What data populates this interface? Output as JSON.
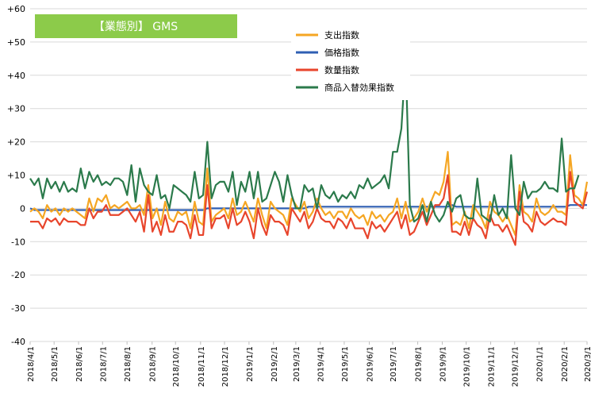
{
  "chart_data": {
    "type": "line",
    "title": "【業態別】 GMS",
    "title_bg": "#8CCB4A",
    "ylim": [
      -40,
      60
    ],
    "yticks": [
      60,
      50,
      40,
      30,
      20,
      10,
      0,
      -10,
      -20,
      -30,
      -40
    ],
    "ytick_labels": [
      "+60",
      "+50",
      "+40",
      "+30",
      "+20",
      "+10",
      "0",
      "-10",
      "-20",
      "-30",
      "-40"
    ],
    "x_start": "2018/4/1",
    "x_interval_weeks": 1,
    "xtick_labels": [
      "2018/4/1",
      "2018/5/1",
      "2018/6/1",
      "2018/7/1",
      "2018/8/1",
      "2018/9/1",
      "2018/10/1",
      "2018/11/1",
      "2018/12/1",
      "2019/1/1",
      "2019/2/1",
      "2019/3/1",
      "2019/4/1",
      "2019/5/1",
      "2019/6/1",
      "2019/7/1",
      "2019/8/1",
      "2019/9/1",
      "2019/10/1",
      "2019/11/1",
      "2019/12/1",
      "2020/1/1",
      "2020/2/1",
      "2020/3/1"
    ],
    "xtick_index": [
      0,
      4.3,
      8.7,
      13,
      17.4,
      21.9,
      26.1,
      30.6,
      34.9,
      39.3,
      43.7,
      47.7,
      52.1,
      56.4,
      60.9,
      65.1,
      69.6,
      74.0,
      78.3,
      82.7,
      87.0,
      91.4,
      95.9,
      100
    ],
    "grid": true,
    "legend_position": "top-center",
    "series": [
      {
        "name": "支出指数",
        "color": "#F5A623",
        "values": [
          -1,
          0,
          -1,
          -3,
          1,
          -1,
          0,
          -2,
          0,
          -1,
          0,
          -1,
          -2,
          -3,
          3,
          -1,
          3,
          2,
          4,
          0,
          1,
          0,
          1,
          2,
          0,
          0,
          1,
          -2,
          7,
          -3,
          0,
          -5,
          2,
          -3,
          -4,
          -1,
          -2,
          -1,
          -6,
          2,
          -4,
          -5,
          12,
          -4,
          -2,
          -1,
          0,
          -3,
          3,
          -2,
          -1,
          2,
          -1,
          -4,
          3,
          -2,
          -6,
          2,
          0,
          -1,
          -2,
          -5,
          3,
          1,
          -1,
          2,
          -3,
          -1,
          3,
          0,
          -2,
          -1,
          -3,
          -1,
          -1,
          -3,
          0,
          -2,
          -3,
          -2,
          -5,
          -1,
          -3,
          -2,
          -4,
          -2,
          -1,
          3,
          -3,
          2,
          -4,
          -3,
          -1,
          3,
          -1,
          2,
          5,
          4,
          8,
          17,
          -5,
          -4,
          -5,
          -1,
          -6,
          1,
          -1,
          -3,
          -6,
          2,
          -1,
          -2,
          -4,
          -2,
          -5,
          -8,
          7,
          -1,
          -2,
          -4,
          3,
          -1,
          -2,
          -1,
          1,
          -1,
          -1,
          -2,
          16,
          4,
          3,
          1,
          8
        ]
      },
      {
        "name": "価格指数",
        "color": "#2F5FB3",
        "values": [
          0,
          -0.5,
          -0.5,
          -0.5,
          -0.5,
          -0.5,
          -0.5,
          -0.5,
          -0.5,
          -0.5,
          -0.5,
          -0.5,
          -0.5,
          -0.5,
          -0.5,
          -0.5,
          -0.5,
          -0.5,
          -0.5,
          -0.5,
          -0.5,
          -0.5,
          -0.5,
          -0.5,
          -0.5,
          -0.5,
          -0.5,
          -0.5,
          -0.5,
          -0.5,
          -0.5,
          -0.5,
          -0.5,
          -0.5,
          -0.5,
          -0.5,
          -0.5,
          -0.5,
          -0.5,
          -0.5,
          -0.5,
          -0.5,
          0,
          0,
          0,
          0,
          0,
          0,
          0,
          0,
          0,
          0,
          0,
          0,
          0,
          0,
          0,
          0,
          0,
          0,
          0,
          0,
          0,
          0,
          0,
          0,
          0.5,
          0.5,
          0.5,
          0.5,
          0.5,
          0.5,
          0.5,
          0.5,
          0.5,
          0.5,
          0.5,
          0.5,
          0.5,
          0.5,
          0.5,
          0.5,
          0.5,
          0.5,
          0.5,
          0.5,
          0.5,
          0.5,
          0.5,
          0.5,
          0.5,
          0.5,
          0.5,
          0.5,
          0.5,
          0.5,
          0.5,
          0.5,
          0.5,
          0.5,
          1,
          0.5,
          0.5,
          0.5,
          0.5,
          0.5,
          0.5,
          0.5,
          0.5,
          0.5,
          0.5,
          0.5,
          0.5,
          0.5,
          0.5,
          0.5,
          0.5,
          0.5,
          0.5,
          0.5,
          0.5,
          0.5,
          0.5,
          0.5,
          0.5,
          0.5,
          0.5,
          0.5,
          1,
          1,
          1,
          1,
          1
        ]
      },
      {
        "name": "数量指数",
        "color": "#E8452C",
        "values": [
          -4,
          -4,
          -4,
          -6,
          -3,
          -4,
          -3,
          -5,
          -3,
          -4,
          -4,
          -4,
          -5,
          -5,
          0,
          -3,
          -1,
          -1,
          1,
          -2,
          -2,
          -2,
          -1,
          0,
          -2,
          -4,
          -1,
          -7,
          4,
          -7,
          -4,
          -8,
          -2,
          -7,
          -7,
          -4,
          -4,
          -5,
          -9,
          -2,
          -8,
          -8,
          7,
          -6,
          -3,
          -3,
          -2,
          -6,
          0,
          -5,
          -4,
          -1,
          -4,
          -9,
          0,
          -5,
          -8,
          -2,
          -4,
          -4,
          -5,
          -8,
          0,
          -2,
          -4,
          -1,
          -6,
          -4,
          0,
          -3,
          -4,
          -4,
          -6,
          -3,
          -4,
          -6,
          -3,
          -6,
          -6,
          -6,
          -9,
          -4,
          -6,
          -5,
          -7,
          -5,
          -3,
          -1,
          -6,
          -2,
          -8,
          -7,
          -4,
          -1,
          -5,
          -2,
          1,
          1,
          3,
          10,
          -7,
          -7,
          -8,
          -4,
          -8,
          -3,
          -5,
          -6,
          -9,
          -2,
          -5,
          -5,
          -7,
          -5,
          -8,
          -11,
          5,
          -4,
          -5,
          -7,
          -1,
          -4,
          -5,
          -4,
          -3,
          -4,
          -4,
          -5,
          11,
          2,
          1,
          0,
          5
        ]
      },
      {
        "name": "商品入替効果指数",
        "color": "#2B7A4B",
        "values": [
          9,
          7,
          9,
          3,
          9,
          6,
          8,
          5,
          8,
          5,
          6,
          5,
          12,
          6,
          11,
          8,
          10,
          7,
          8,
          7,
          9,
          9,
          8,
          4,
          13,
          2,
          12,
          7,
          5,
          4,
          10,
          3,
          4,
          0,
          7,
          6,
          5,
          4,
          2,
          11,
          3,
          4,
          20,
          3,
          7,
          8,
          8,
          5,
          11,
          1,
          8,
          5,
          11,
          3,
          11,
          2,
          3,
          7,
          11,
          8,
          2,
          10,
          4,
          0,
          0,
          7,
          5,
          6,
          0,
          7,
          4,
          3,
          5,
          2,
          4,
          3,
          5,
          3,
          7,
          6,
          9,
          6,
          7,
          8,
          10,
          6,
          17,
          17,
          24,
          45,
          1,
          -4,
          -3,
          1,
          -4,
          2,
          -2,
          -4,
          -2,
          2,
          -1,
          3,
          4,
          -2,
          -3,
          -3,
          9,
          -2,
          -3,
          -4,
          4,
          -2,
          0,
          -3,
          16,
          0,
          -2,
          8,
          3,
          5,
          5,
          6,
          8,
          6,
          6,
          5,
          21,
          5,
          6,
          6,
          10
        ]
      }
    ]
  }
}
